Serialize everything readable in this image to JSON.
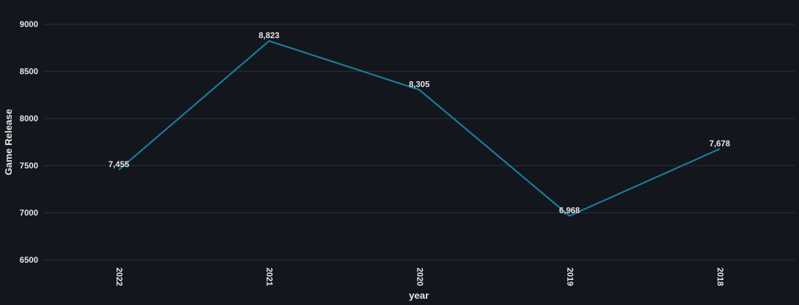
{
  "chart_data": {
    "type": "line",
    "categories": [
      "2022",
      "2021",
      "2020",
      "2019",
      "2018"
    ],
    "series": [
      {
        "values": [
          7455,
          8823,
          8305,
          6968,
          7678
        ],
        "labels": [
          "7,455",
          "8,823",
          "8,305",
          "6,968",
          "7,678"
        ]
      }
    ],
    "xlabel": "year",
    "ylabel": "Game Release",
    "ylim": [
      6500,
      9000
    ],
    "yticks": [
      "6500",
      "7000",
      "7500",
      "8000",
      "8500",
      "9000"
    ],
    "grid": true,
    "line_color": "#1a7fa0",
    "background": "#13171d"
  }
}
